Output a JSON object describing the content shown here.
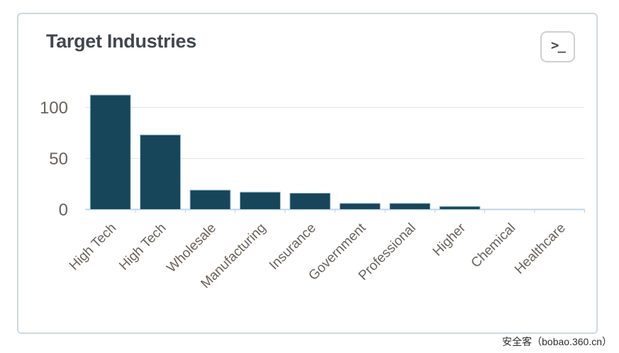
{
  "panel": {
    "title": "Target Industries",
    "console_button": {
      "glyph": ">_",
      "icon": "terminal-icon"
    }
  },
  "watermark": {
    "text": "安全客（bobao.360.cn）"
  },
  "colors": {
    "bar_fill": "#17455a",
    "bar_border": "#a9c6da",
    "axis_line": "#bfd4e6",
    "gridline": "#e6e6e6",
    "tick_label": "#6a635c",
    "title_text": "#42474e",
    "panel_border": "#ccd9e3"
  },
  "chart_data": {
    "type": "bar",
    "title": "Target Industries",
    "categories": [
      "High Tech",
      "High Tech",
      "Wholesale",
      "Manufacturing",
      "Insurance",
      "Government",
      "Professional",
      "Higher",
      "Chemical",
      "Healthcare"
    ],
    "values": [
      112,
      73,
      19,
      17,
      16,
      6,
      6,
      3,
      0,
      0
    ],
    "xlabel": "",
    "ylabel": "",
    "yticks": [
      0,
      50,
      100
    ],
    "ylim": [
      0,
      120
    ],
    "grid": true,
    "legend": false,
    "x_label_rotation": -45
  }
}
